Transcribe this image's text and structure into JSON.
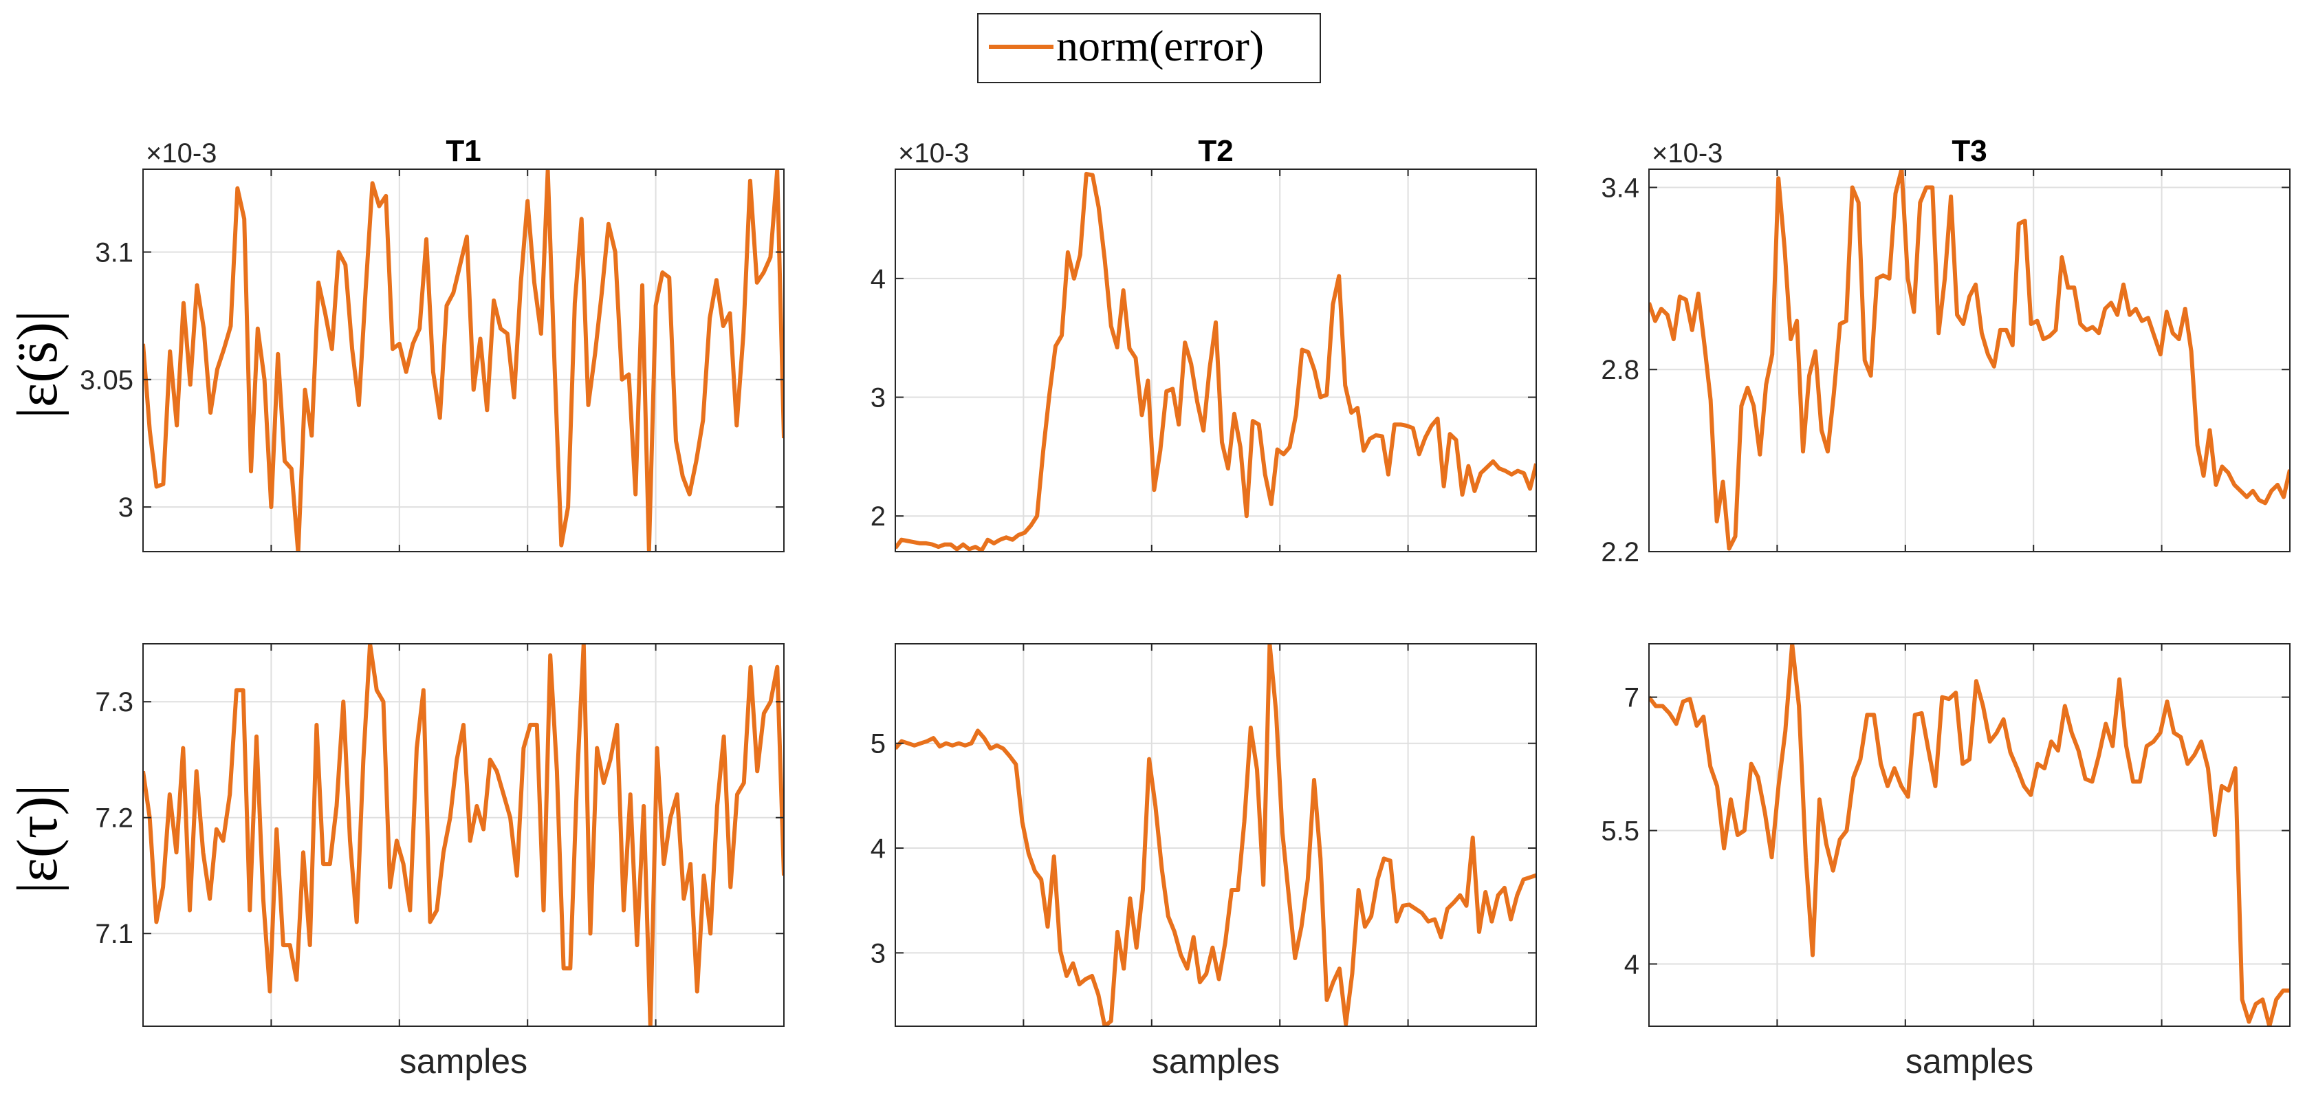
{
  "legend": {
    "label": "norm(error)"
  },
  "colors": {
    "series": "#e8711c",
    "grid": "#dfdfdf",
    "axis": "#262626",
    "background": "#ffffff"
  },
  "row_labels": [
    "|ε(s̈)|",
    "|ε(τ)|"
  ],
  "chart_data": [
    {
      "type": "line",
      "title": "T1",
      "xlabel": "",
      "ylabel": "|ε(s̈)|",
      "exponent": "×10-3",
      "ylim": [
        2.9825,
        3.1325
      ],
      "yticks": [
        3,
        3.05,
        3.1
      ],
      "ytick_labels": [
        "3",
        "3.05",
        "3.1"
      ],
      "grid": true,
      "series": [
        {
          "name": "norm(error)",
          "values": [
            3.064,
            3.03,
            3.008,
            3.009,
            3.061,
            3.032,
            3.08,
            3.048,
            3.087,
            3.07,
            3.037,
            3.054,
            3.062,
            3.071,
            3.125,
            3.113,
            3.014,
            3.07,
            3.05,
            3.0,
            3.06,
            3.018,
            3.015,
            2.982,
            3.046,
            3.028,
            3.088,
            3.076,
            3.062,
            3.1,
            3.095,
            3.062,
            3.04,
            3.085,
            3.127,
            3.118,
            3.122,
            3.062,
            3.064,
            3.053,
            3.064,
            3.07,
            3.105,
            3.053,
            3.035,
            3.079,
            3.084,
            3.095,
            3.106,
            3.046,
            3.066,
            3.038,
            3.081,
            3.07,
            3.068,
            3.043,
            3.088,
            3.12,
            3.088,
            3.068,
            3.132,
            3.056,
            2.985,
            3.0,
            3.08,
            3.113,
            3.04,
            3.06,
            3.084,
            3.111,
            3.1,
            3.05,
            3.052,
            3.005,
            3.087,
            2.983,
            3.079,
            3.092,
            3.09,
            3.026,
            3.012,
            3.005,
            3.018,
            3.034,
            3.074,
            3.089,
            3.071,
            3.076,
            3.032,
            3.068,
            3.128,
            3.088,
            3.092,
            3.098,
            3.132,
            3.027
          ]
        }
      ]
    },
    {
      "type": "line",
      "title": "T2",
      "xlabel": "",
      "ylabel": "",
      "exponent": "×10-3",
      "ylim": [
        1.7,
        4.92
      ],
      "yticks": [
        2,
        3,
        4
      ],
      "ytick_labels": [
        "2",
        "3",
        "4"
      ],
      "grid": true,
      "series": [
        {
          "name": "norm(error)",
          "values": [
            1.73,
            1.8,
            1.79,
            1.78,
            1.77,
            1.77,
            1.76,
            1.74,
            1.76,
            1.76,
            1.72,
            1.76,
            1.72,
            1.74,
            1.71,
            1.8,
            1.77,
            1.8,
            1.82,
            1.8,
            1.84,
            1.86,
            1.92,
            2.0,
            2.55,
            3.02,
            3.43,
            3.52,
            4.22,
            4.0,
            4.2,
            4.88,
            4.87,
            4.6,
            4.15,
            3.6,
            3.42,
            3.9,
            3.41,
            3.33,
            2.85,
            3.14,
            2.22,
            2.55,
            3.05,
            3.07,
            2.77,
            3.46,
            3.28,
            2.96,
            2.72,
            3.24,
            3.63,
            2.62,
            2.4,
            2.86,
            2.58,
            2.0,
            2.8,
            2.77,
            2.35,
            2.1,
            2.56,
            2.52,
            2.58,
            2.85,
            3.4,
            3.38,
            3.23,
            3.0,
            3.02,
            3.78,
            4.02,
            3.1,
            2.87,
            2.91,
            2.55,
            2.65,
            2.68,
            2.67,
            2.35,
            2.77,
            2.77,
            2.76,
            2.74,
            2.52,
            2.66,
            2.76,
            2.82,
            2.25,
            2.69,
            2.64,
            2.18,
            2.42,
            2.21,
            2.36,
            2.41,
            2.46,
            2.4,
            2.38,
            2.35,
            2.38,
            2.36,
            2.23,
            2.44
          ]
        }
      ]
    },
    {
      "type": "line",
      "title": "T3",
      "xlabel": "",
      "ylabel": "",
      "exponent": "×10-3",
      "ylim": [
        2.2,
        3.46
      ],
      "yticks": [
        2.2,
        2.8,
        3.4
      ],
      "ytick_labels": [
        "2.2",
        "2.8",
        "3.4"
      ],
      "grid": true,
      "series": [
        {
          "name": "norm(error)",
          "values": [
            3.02,
            2.96,
            3.0,
            2.98,
            2.9,
            3.04,
            3.03,
            2.93,
            3.05,
            2.88,
            2.7,
            2.3,
            2.43,
            2.21,
            2.25,
            2.68,
            2.74,
            2.68,
            2.52,
            2.75,
            2.85,
            3.43,
            3.2,
            2.9,
            2.96,
            2.53,
            2.78,
            2.86,
            2.6,
            2.53,
            2.72,
            2.95,
            2.96,
            3.4,
            3.35,
            2.83,
            2.78,
            3.1,
            3.11,
            3.1,
            3.38,
            3.46,
            3.1,
            2.99,
            3.35,
            3.4,
            3.4,
            2.92,
            3.1,
            3.37,
            2.98,
            2.95,
            3.04,
            3.08,
            2.92,
            2.85,
            2.81,
            2.93,
            2.93,
            2.88,
            3.28,
            3.29,
            2.95,
            2.96,
            2.9,
            2.91,
            2.93,
            3.17,
            3.07,
            3.07,
            2.95,
            2.93,
            2.94,
            2.92,
            3.0,
            3.02,
            2.98,
            3.08,
            2.98,
            3.0,
            2.96,
            2.97,
            2.91,
            2.85,
            2.99,
            2.92,
            2.9,
            3.0,
            2.86,
            2.55,
            2.45,
            2.6,
            2.42,
            2.48,
            2.46,
            2.42,
            2.4,
            2.38,
            2.4,
            2.37,
            2.36,
            2.4,
            2.42,
            2.38,
            2.47
          ]
        }
      ]
    },
    {
      "type": "line",
      "title": "",
      "xlabel": "samples",
      "ylabel": "|ε(τ)|",
      "ylim": [
        7.02,
        7.35
      ],
      "yticks": [
        7.1,
        7.2,
        7.3
      ],
      "ytick_labels": [
        "7.1",
        "7.2",
        "7.3"
      ],
      "grid": true,
      "series": [
        {
          "name": "norm(error)",
          "values": [
            7.24,
            7.2,
            7.11,
            7.14,
            7.22,
            7.17,
            7.26,
            7.12,
            7.24,
            7.17,
            7.13,
            7.19,
            7.18,
            7.22,
            7.31,
            7.31,
            7.12,
            7.27,
            7.13,
            7.05,
            7.19,
            7.09,
            7.09,
            7.06,
            7.17,
            7.09,
            7.28,
            7.16,
            7.16,
            7.21,
            7.3,
            7.18,
            7.11,
            7.25,
            7.35,
            7.31,
            7.3,
            7.14,
            7.18,
            7.16,
            7.12,
            7.26,
            7.31,
            7.11,
            7.12,
            7.17,
            7.2,
            7.25,
            7.28,
            7.18,
            7.21,
            7.19,
            7.25,
            7.24,
            7.22,
            7.2,
            7.15,
            7.26,
            7.28,
            7.28,
            7.12,
            7.34,
            7.24,
            7.07,
            7.07,
            7.23,
            7.35,
            7.1,
            7.26,
            7.23,
            7.25,
            7.28,
            7.12,
            7.22,
            7.09,
            7.21,
            7.02,
            7.26,
            7.16,
            7.2,
            7.22,
            7.13,
            7.16,
            7.05,
            7.15,
            7.1,
            7.21,
            7.27,
            7.14,
            7.22,
            7.23,
            7.33,
            7.24,
            7.29,
            7.3,
            7.33,
            7.15
          ]
        }
      ]
    },
    {
      "type": "line",
      "title": "",
      "xlabel": "samples",
      "ylabel": "",
      "ylim": [
        2.3,
        5.95
      ],
      "yticks": [
        3,
        4,
        5
      ],
      "ytick_labels": [
        "3",
        "4",
        "5"
      ],
      "grid": true,
      "series": [
        {
          "name": "norm(error)",
          "values": [
            4.95,
            5.02,
            5.0,
            4.98,
            5.0,
            5.02,
            5.05,
            4.97,
            5.0,
            4.98,
            5.0,
            4.98,
            5.0,
            5.12,
            5.05,
            4.95,
            4.98,
            4.95,
            4.88,
            4.8,
            4.25,
            3.95,
            3.78,
            3.7,
            3.25,
            3.92,
            3.02,
            2.78,
            2.9,
            2.7,
            2.75,
            2.78,
            2.6,
            2.3,
            2.35,
            3.2,
            2.85,
            3.52,
            3.05,
            3.6,
            4.85,
            4.4,
            3.8,
            3.35,
            3.2,
            2.98,
            2.85,
            3.15,
            2.72,
            2.8,
            3.05,
            2.75,
            3.1,
            3.6,
            3.6,
            4.25,
            5.15,
            4.75,
            3.65,
            5.95,
            5.3,
            4.15,
            3.55,
            2.95,
            3.25,
            3.7,
            4.65,
            3.9,
            2.55,
            2.72,
            2.85,
            2.32,
            2.8,
            3.6,
            3.25,
            3.35,
            3.7,
            3.9,
            3.88,
            3.3,
            3.45,
            3.46,
            3.42,
            3.38,
            3.3,
            3.32,
            3.15,
            3.42,
            3.48,
            3.55,
            3.45,
            4.1,
            3.2,
            3.58,
            3.3,
            3.55,
            3.62,
            3.32,
            3.55,
            3.7,
            3.72,
            3.74
          ]
        }
      ]
    },
    {
      "type": "line",
      "title": "",
      "xlabel": "samples",
      "ylabel": "",
      "ylim": [
        3.3,
        7.6
      ],
      "yticks": [
        4,
        5.5,
        7
      ],
      "ytick_labels": [
        "4",
        "5.5",
        "7"
      ],
      "grid": true,
      "series": [
        {
          "name": "norm(error)",
          "values": [
            7.0,
            6.9,
            6.9,
            6.82,
            6.7,
            6.95,
            6.98,
            6.68,
            6.78,
            6.22,
            6.0,
            5.3,
            5.85,
            5.45,
            5.5,
            6.25,
            6.1,
            5.7,
            5.2,
            6.0,
            6.62,
            7.6,
            6.9,
            5.2,
            4.1,
            5.85,
            5.35,
            5.05,
            5.4,
            5.5,
            6.1,
            6.3,
            6.8,
            6.8,
            6.25,
            6.0,
            6.2,
            6.0,
            5.88,
            6.8,
            6.82,
            6.4,
            6.0,
            7.0,
            6.98,
            7.05,
            6.25,
            6.3,
            7.18,
            6.9,
            6.5,
            6.6,
            6.75,
            6.38,
            6.2,
            6.0,
            5.9,
            6.25,
            6.2,
            6.5,
            6.4,
            6.9,
            6.6,
            6.4,
            6.08,
            6.05,
            6.35,
            6.7,
            6.45,
            7.2,
            6.45,
            6.05,
            6.05,
            6.45,
            6.5,
            6.6,
            6.95,
            6.6,
            6.55,
            6.25,
            6.35,
            6.5,
            6.2,
            5.45,
            6.0,
            5.95,
            6.2,
            3.6,
            3.35,
            3.55,
            3.6,
            3.3,
            3.6,
            3.7,
            3.7
          ]
        }
      ]
    }
  ]
}
